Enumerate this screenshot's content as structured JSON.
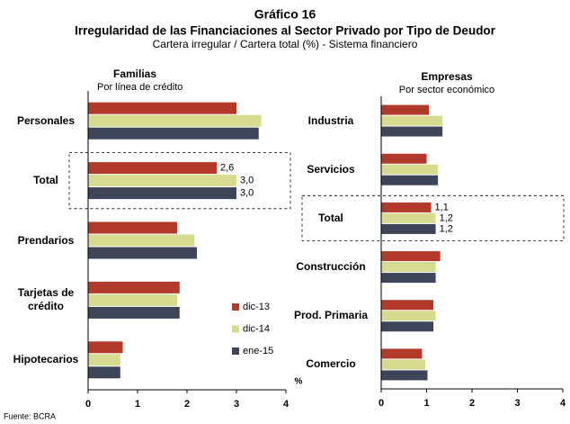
{
  "title": "Gráfico 16",
  "subtitle": "Irregularidad de las Financiaciones al Sector Privado por Tipo de Deudor",
  "caption": "Cartera irregular / Cartera total (%) - Sistema financiero",
  "source": "Fuente: BCRA",
  "chart_data": [
    {
      "type": "barh",
      "title": "Familias",
      "subtitle": "Por línea de crédito",
      "categories": [
        "Personales",
        "Total",
        "Prendarios",
        "Tarjetas de crédito",
        "Hipotecarios"
      ],
      "series": [
        {
          "name": "dic-13",
          "color": "#b23a2a",
          "values": [
            3.0,
            2.6,
            1.8,
            1.85,
            0.7
          ],
          "value_labels": [
            null,
            "2,6",
            null,
            null,
            null
          ]
        },
        {
          "name": "dic-14",
          "color": "#d6db8f",
          "values": [
            3.5,
            3.0,
            2.15,
            1.8,
            0.65
          ],
          "value_labels": [
            null,
            "3,0",
            null,
            null,
            null
          ]
        },
        {
          "name": "ene-15",
          "color": "#3f4558",
          "values": [
            3.45,
            3.0,
            2.2,
            1.85,
            0.65
          ],
          "value_labels": [
            null,
            "3,0",
            null,
            null,
            null
          ]
        }
      ],
      "xlim": [
        0,
        4
      ],
      "xticks": [
        0,
        1,
        2,
        3,
        4
      ],
      "xlabel": "%",
      "legend": "lower right"
    },
    {
      "type": "barh",
      "title": "Empresas",
      "subtitle": "Por sector económico",
      "categories": [
        "Industria",
        "Servicios",
        "Total",
        "Construcción",
        "Prod. Primaria",
        "Comercio"
      ],
      "series": [
        {
          "color": "#b23a2a",
          "values": [
            1.05,
            1.0,
            1.1,
            1.3,
            1.15,
            0.9
          ],
          "value_labels": [
            null,
            null,
            "1,1",
            null,
            null,
            null
          ]
        },
        {
          "color": "#d6db8f",
          "values": [
            1.35,
            1.25,
            1.2,
            1.2,
            1.2,
            0.97
          ],
          "value_labels": [
            null,
            null,
            "1,2",
            null,
            null,
            null
          ]
        },
        {
          "color": "#3f4558",
          "values": [
            1.35,
            1.25,
            1.2,
            1.2,
            1.15,
            1.02
          ],
          "value_labels": [
            null,
            null,
            "1,2",
            null,
            null,
            null
          ]
        }
      ],
      "xlim": [
        0,
        4
      ],
      "xticks": [
        0,
        1,
        2,
        3,
        4
      ],
      "xlabel": "%"
    }
  ]
}
